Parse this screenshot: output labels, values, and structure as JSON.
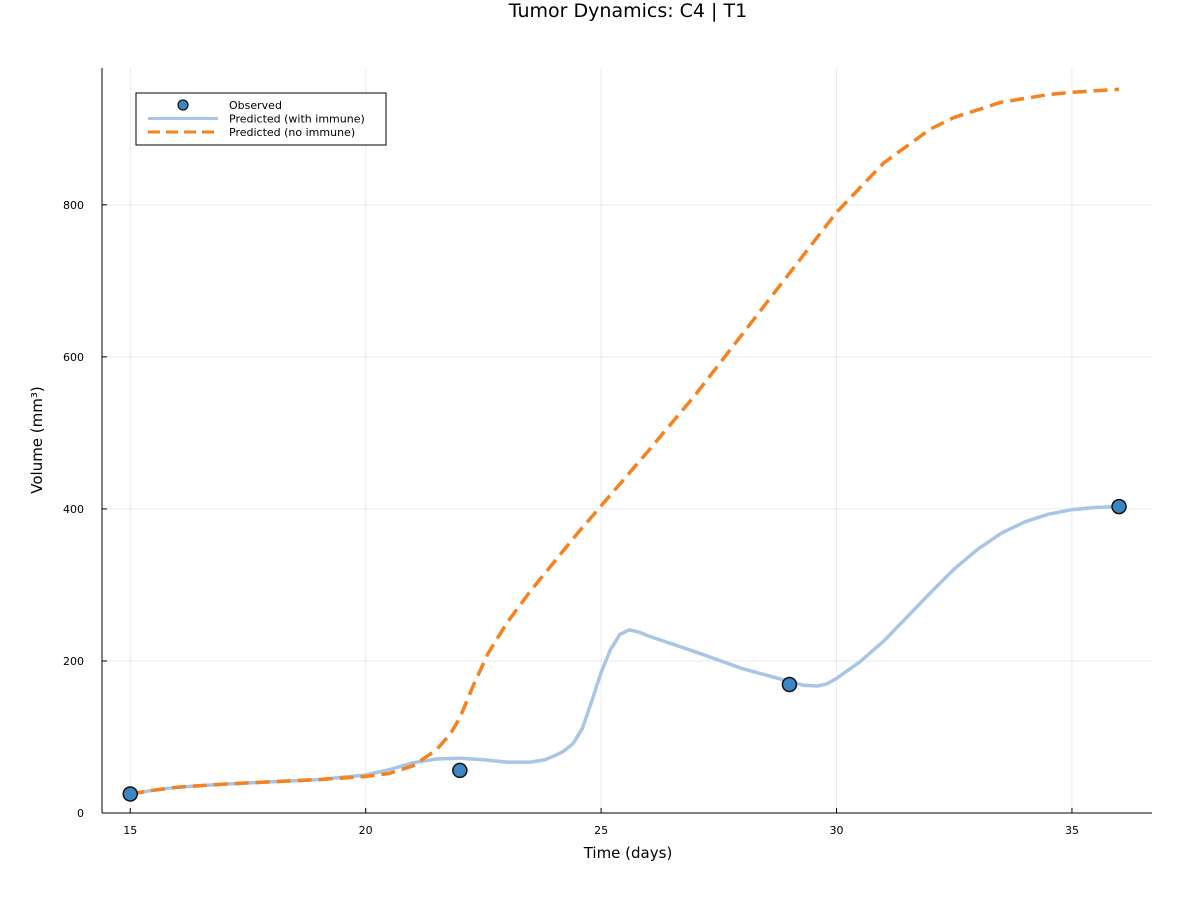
{
  "chart_data": {
    "type": "line",
    "title": "Tumor Dynamics: C4 | T1",
    "xlabel": "Time (days)",
    "ylabel": "Volume (mm³)",
    "xlim": [
      14.4,
      36.7
    ],
    "ylim": [
      0,
      980
    ],
    "xticks": [
      15,
      20,
      25,
      30,
      35
    ],
    "yticks": [
      0,
      200,
      400,
      600,
      800
    ],
    "xtick_labels": [
      "15",
      "20",
      "25",
      "30",
      "35"
    ],
    "ytick_labels": [
      "0",
      "200",
      "400",
      "600",
      "800"
    ],
    "grid": true,
    "legend_position": "top-left",
    "series": [
      {
        "name": "Observed",
        "kind": "scatter",
        "color": "#3b86c4",
        "x": [
          15,
          22,
          29,
          36
        ],
        "y": [
          25,
          56,
          169,
          403
        ]
      },
      {
        "name": "Predicted (with immune)",
        "kind": "line",
        "color": "#a9c5e6",
        "dash": false,
        "x": [
          15,
          15.5,
          16,
          17,
          18,
          19,
          20,
          20.5,
          21,
          21.5,
          22,
          22.5,
          23,
          23.5,
          23.8,
          24,
          24.2,
          24.4,
          24.6,
          24.8,
          25,
          25.2,
          25.4,
          25.6,
          25.8,
          26,
          27,
          28,
          29,
          29.3,
          29.6,
          29.8,
          30,
          30.5,
          31,
          31.5,
          32,
          32.5,
          33,
          33.5,
          34,
          34.5,
          35,
          35.5,
          36
        ],
        "y": [
          25,
          30,
          34,
          38,
          41,
          44,
          50,
          57,
          66,
          71,
          72,
          70,
          67,
          67,
          70,
          75,
          81,
          91,
          111,
          147,
          185,
          215,
          235,
          241,
          238,
          233,
          212,
          190,
          173,
          168,
          167,
          170,
          177,
          199,
          226,
          258,
          290,
          321,
          347,
          368,
          383,
          393,
          399,
          402,
          403
        ]
      },
      {
        "name": "Predicted (no immune)",
        "kind": "line",
        "color": "#f5821f",
        "dash": true,
        "x": [
          15,
          15.5,
          16,
          17,
          18,
          19,
          20,
          20.5,
          21,
          21.5,
          21.8,
          22,
          22.3,
          22.6,
          23,
          23.5,
          24,
          24.5,
          25,
          25.5,
          26,
          27,
          28,
          29,
          30,
          31,
          32,
          32.5,
          33,
          33.5,
          34,
          34.5,
          35,
          35.5,
          36
        ],
        "y": [
          25,
          30,
          34,
          38,
          41,
          44,
          48,
          52,
          62,
          83,
          104,
          125,
          170,
          210,
          250,
          292,
          330,
          368,
          404,
          440,
          476,
          550,
          630,
          710,
          790,
          855,
          900,
          915,
          925,
          935,
          940,
          945,
          948,
          950,
          952
        ]
      }
    ]
  }
}
